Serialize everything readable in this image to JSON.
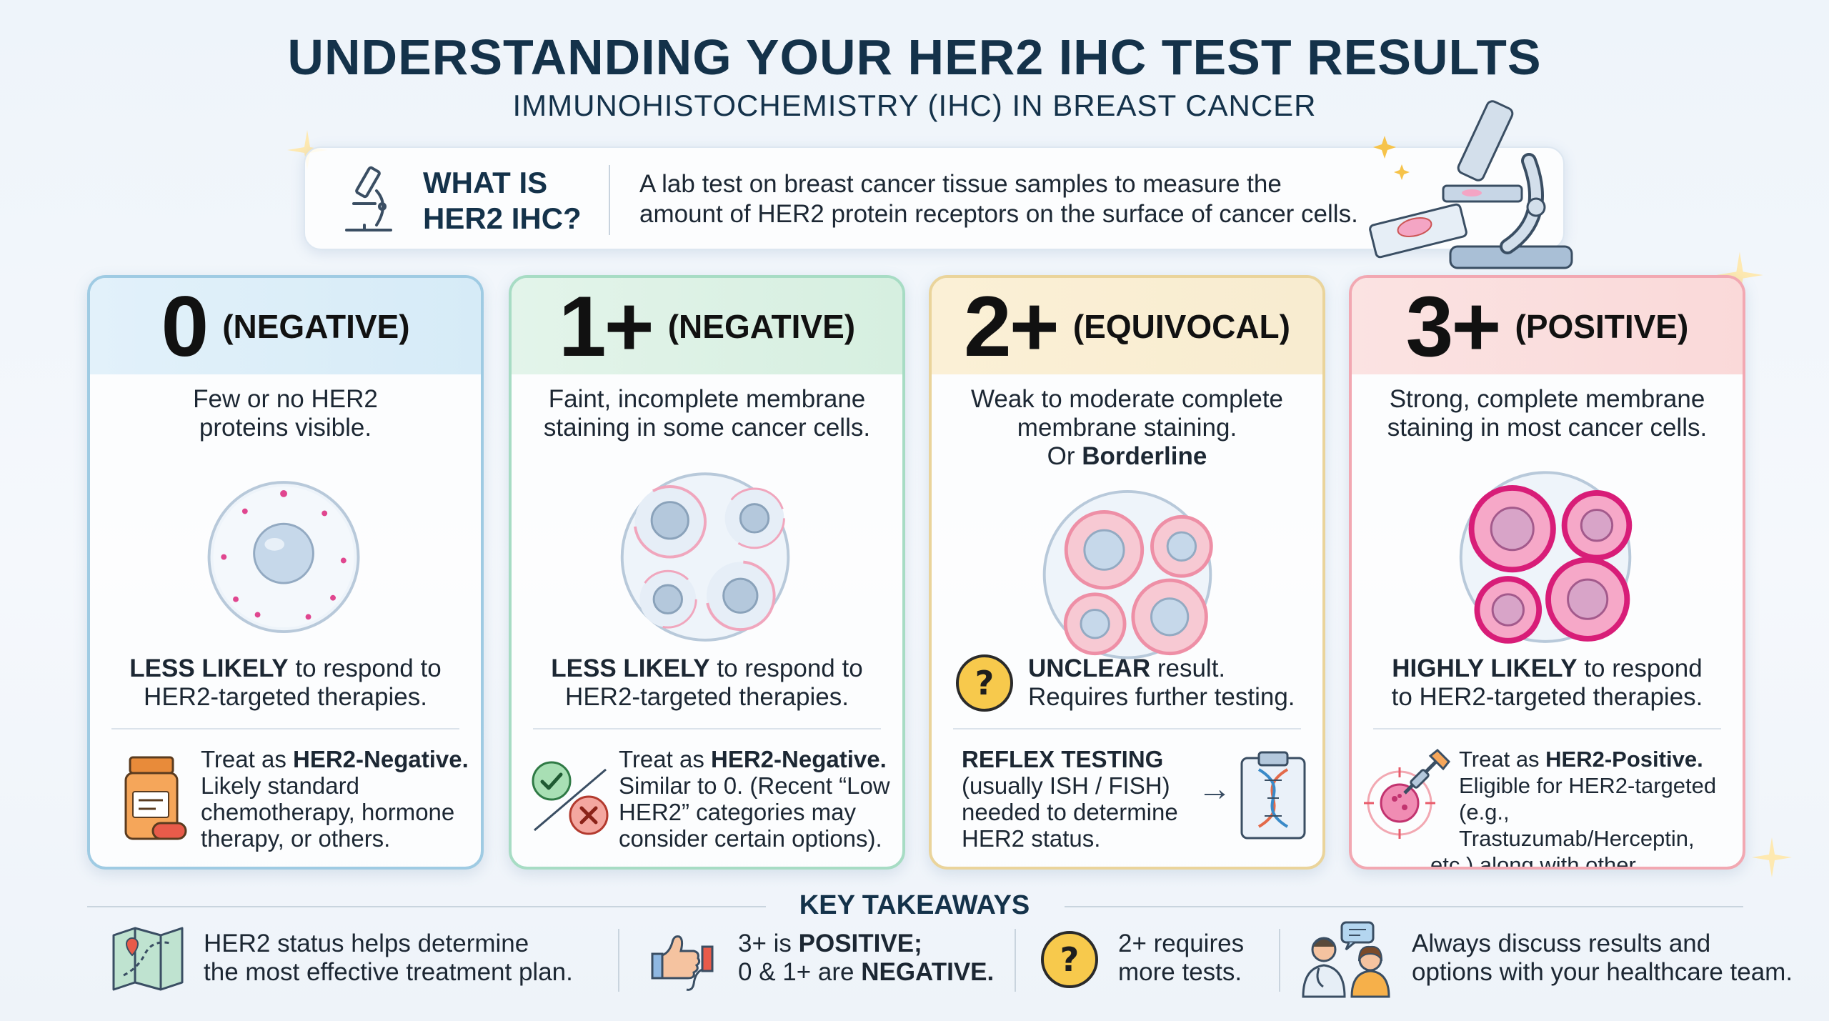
{
  "header": {
    "title": "UNDERSTANDING YOUR HER2 IHC TEST RESULTS",
    "subtitle": "IMMUNOHISTOCHEMISTRY (IHC) IN BREAST CANCER"
  },
  "whatis": {
    "title_line1": "WHAT IS",
    "title_line2": "HER2 IHC?",
    "text_line1": "A lab test on breast cancer tissue samples to measure the",
    "text_line2": "amount of HER2 protein receptors on the surface of cancer cells."
  },
  "cards": [
    {
      "score": "0",
      "status": "(NEGATIVE)",
      "desc_line1": "Few or no HER2",
      "desc_line2": "proteins visible.",
      "likely_bold": "LESS LIKELY",
      "likely_rest": " to respond to",
      "likely_line2": "HER2-targeted therapies.",
      "treat_prefix": "Treat as ",
      "treat_bold": "HER2-Negative.",
      "treat_line2": "Likely standard",
      "treat_line3": "chemotherapy, hormone",
      "treat_line4": "therapy, or others."
    },
    {
      "score": "1+",
      "status": "(NEGATIVE)",
      "desc_line1": "Faint, incomplete membrane",
      "desc_line2": "staining in some cancer cells.",
      "likely_bold": "LESS LIKELY",
      "likely_rest": " to respond to",
      "likely_line2": "HER2-targeted therapies.",
      "treat_prefix": "Treat as ",
      "treat_bold": "HER2-Negative.",
      "treat_line2": "Similar to 0. (Recent “Low",
      "treat_line3": "HER2” categories may",
      "treat_line4": "consider certain options)."
    },
    {
      "score": "2+",
      "status": "(EQUIVOCAL)",
      "desc_line1": "Weak to moderate complete",
      "desc_line2": "membrane staining.",
      "desc_line3_prefix": "Or ",
      "desc_line3_bold": "Borderline",
      "likely_bold": "UNCLEAR",
      "likely_rest": " result.",
      "likely_line2": "Requires further testing.",
      "treat_bold": "REFLEX TESTING",
      "treat_line2": "(usually ISH / FISH)",
      "treat_line3": "needed to determine",
      "treat_line4": "HER2 status.",
      "arrow": "→"
    },
    {
      "score": "3+",
      "status": "(POSITIVE)",
      "desc_line1": "Strong, complete membrane",
      "desc_line2": "staining in most cancer cells.",
      "likely_bold": "HIGHLY LIKELY",
      "likely_rest": " to respond",
      "likely_line2": "to HER2-targeted therapies.",
      "treat_prefix": "Treat as ",
      "treat_bold": "HER2-Positive.",
      "treat_line2": "Eligible for HER2-targeted",
      "treat_line3": "(e.g., Trastuzumab/Herceptin,",
      "treat_line4": "etc.) along with other treatments."
    }
  ],
  "takeaways": {
    "title": "KEY TAKEAWAYS",
    "items": [
      {
        "line1": "HER2 status helps determine",
        "line2": "the most effective treatment plan.",
        "icon": "map-icon"
      },
      {
        "line1_prefix": "3+ is ",
        "line1_bold": "POSITIVE;",
        "line2_prefix": "0 & 1+ are ",
        "line2_bold": "NEGATIVE.",
        "icon": "thumbs-up-down-icon"
      },
      {
        "line1": "2+ requires",
        "line2": "more tests.",
        "icon": "question-icon"
      },
      {
        "line1": "Always discuss results and",
        "line2": "options with your healthcare team.",
        "icon": "doctor-patient-icon"
      }
    ]
  },
  "colors": {
    "navy": "#14324a",
    "card0_border": "#9fcbe3",
    "card1_border": "#a7dcc4",
    "card2_border": "#ead49b",
    "card3_border": "#f2a8b2",
    "stain_pink": "#e0468f"
  }
}
